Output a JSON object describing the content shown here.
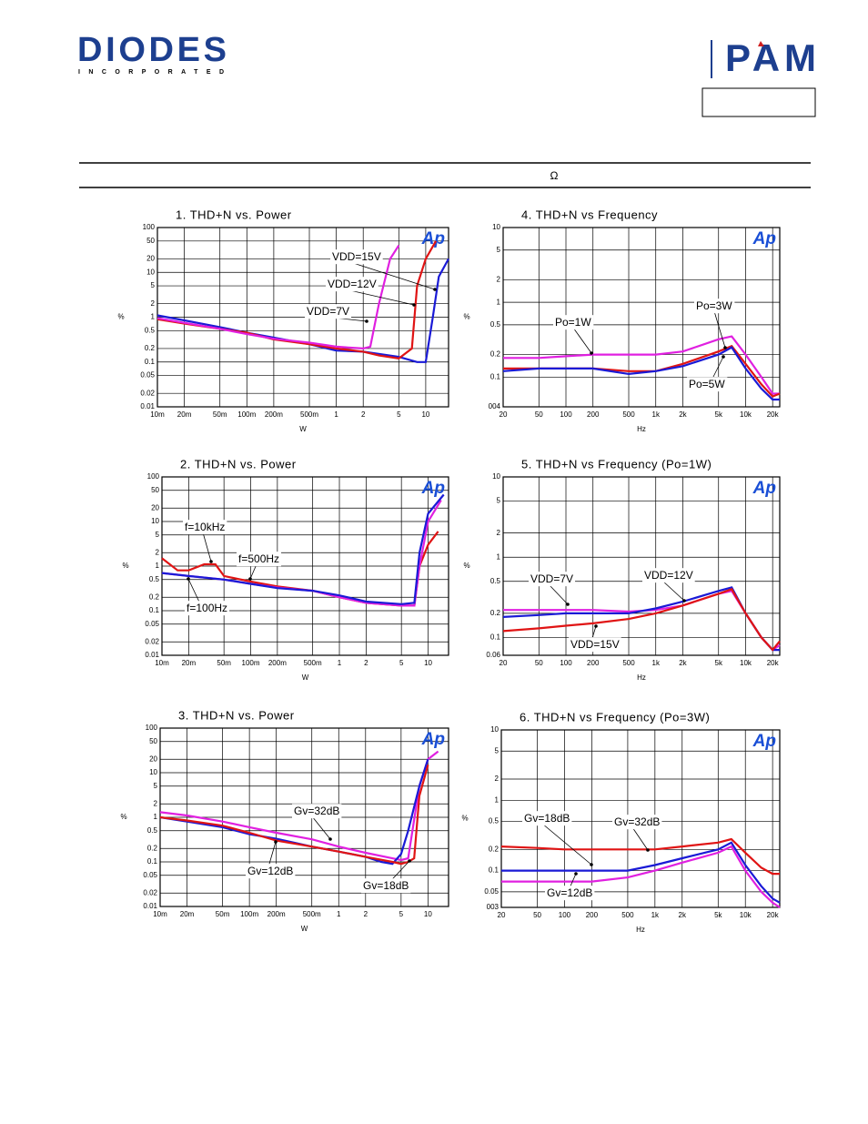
{
  "header": {
    "company": "DIODES",
    "company_sub": "INCORPORATED",
    "brand": "PAM",
    "unit_symbol": "Ω"
  },
  "chart_data": [
    {
      "type": "line",
      "title": "1. THD+N vs. Power",
      "logo": "Ap",
      "x_label": "W",
      "y_label": "%",
      "xscale": "log",
      "yscale": "log",
      "grid": true,
      "xlim": [
        0.01,
        18
      ],
      "ylim": [
        0.01,
        100
      ],
      "xticks": [
        {
          "value": 0.01,
          "label": "10m"
        },
        {
          "value": 0.02,
          "label": "20m"
        },
        {
          "value": 0.05,
          "label": "50m"
        },
        {
          "value": 0.1,
          "label": "100m"
        },
        {
          "value": 0.2,
          "label": "200m"
        },
        {
          "value": 0.5,
          "label": "500m"
        },
        1,
        2,
        5,
        10
      ],
      "yticks": [
        0.01,
        0.02,
        0.05,
        0.1,
        0.2,
        0.5,
        1,
        2,
        5,
        10,
        20,
        50,
        100
      ],
      "series": [
        {
          "name": "VDD=15V",
          "color": "#1a1ad6",
          "x": [
            0.01,
            0.02,
            0.05,
            0.1,
            0.2,
            0.5,
            1,
            2,
            5,
            8,
            10,
            12,
            14,
            18
          ],
          "values": [
            1.1,
            0.85,
            0.6,
            0.45,
            0.35,
            0.25,
            0.18,
            0.17,
            0.13,
            0.1,
            0.1,
            1,
            8,
            20
          ]
        },
        {
          "name": "VDD=12V",
          "color": "#e01414",
          "x": [
            0.01,
            0.02,
            0.05,
            0.1,
            0.2,
            0.5,
            1,
            2,
            3,
            5,
            7,
            8,
            10,
            13
          ],
          "values": [
            0.9,
            0.72,
            0.55,
            0.45,
            0.32,
            0.25,
            0.2,
            0.17,
            0.14,
            0.12,
            0.2,
            5,
            20,
            50
          ]
        },
        {
          "name": "VDD=7V",
          "color": "#e020e0",
          "x": [
            0.01,
            0.02,
            0.05,
            0.1,
            0.2,
            0.5,
            1,
            2,
            2.4,
            3,
            4,
            5
          ],
          "values": [
            0.95,
            0.75,
            0.55,
            0.42,
            0.33,
            0.27,
            0.22,
            0.2,
            0.22,
            2,
            20,
            40
          ]
        }
      ]
    },
    {
      "type": "line",
      "title": "2. THD+N vs. Power",
      "logo": "Ap",
      "x_label": "W",
      "y_label": "%",
      "xscale": "log",
      "yscale": "log",
      "grid": true,
      "xlim": [
        0.01,
        17
      ],
      "ylim": [
        0.01,
        100
      ],
      "xticks": [
        {
          "value": 0.01,
          "label": "10m"
        },
        {
          "value": 0.02,
          "label": "20m"
        },
        {
          "value": 0.05,
          "label": "50m"
        },
        {
          "value": 0.1,
          "label": "100m"
        },
        {
          "value": 0.2,
          "label": "200m"
        },
        {
          "value": 0.5,
          "label": "500m"
        },
        1,
        2,
        5,
        10
      ],
      "yticks": [
        0.01,
        0.02,
        0.05,
        0.1,
        0.2,
        0.5,
        1,
        2,
        5,
        10,
        20,
        50,
        100
      ],
      "series": [
        {
          "name": "f=10kHz",
          "color": "#e01414",
          "x": [
            0.01,
            0.015,
            0.02,
            0.03,
            0.04,
            0.05,
            0.1,
            0.2,
            0.5,
            1,
            2,
            5,
            7,
            8,
            10,
            13
          ],
          "values": [
            1.5,
            0.8,
            0.8,
            1.1,
            1.1,
            0.6,
            0.45,
            0.35,
            0.28,
            0.2,
            0.15,
            0.13,
            0.13,
            1,
            3,
            6
          ]
        },
        {
          "name": "f=500Hz",
          "color": "#e020e0",
          "x": [
            0.01,
            0.02,
            0.05,
            0.1,
            0.2,
            0.5,
            1,
            2,
            5,
            7,
            8,
            10,
            14
          ],
          "values": [
            0.7,
            0.6,
            0.5,
            0.4,
            0.33,
            0.28,
            0.2,
            0.15,
            0.13,
            0.13,
            1,
            10,
            30
          ]
        },
        {
          "name": "f=100Hz",
          "color": "#1a1ad6",
          "x": [
            0.01,
            0.02,
            0.05,
            0.1,
            0.2,
            0.5,
            1,
            2,
            5,
            7,
            8,
            10,
            15
          ],
          "values": [
            0.7,
            0.6,
            0.5,
            0.4,
            0.32,
            0.28,
            0.22,
            0.16,
            0.14,
            0.15,
            2,
            15,
            40
          ]
        }
      ]
    },
    {
      "type": "line",
      "title": "3. THD+N vs. Power",
      "logo": "Ap",
      "x_label": "W",
      "y_label": "%",
      "xscale": "log",
      "yscale": "log",
      "grid": true,
      "xlim": [
        0.01,
        17
      ],
      "ylim": [
        0.01,
        100
      ],
      "xticks": [
        {
          "value": 0.01,
          "label": "10m"
        },
        {
          "value": 0.02,
          "label": "20m"
        },
        {
          "value": 0.05,
          "label": "50m"
        },
        {
          "value": 0.1,
          "label": "100m"
        },
        {
          "value": 0.2,
          "label": "200m"
        },
        {
          "value": 0.5,
          "label": "500m"
        },
        1,
        2,
        5,
        10
      ],
      "yticks": [
        0.01,
        0.02,
        0.05,
        0.1,
        0.2,
        0.5,
        1,
        2,
        5,
        10,
        20,
        50,
        100
      ],
      "series": [
        {
          "name": "Gv=32dB",
          "color": "#e020e0",
          "x": [
            0.01,
            0.02,
            0.05,
            0.1,
            0.2,
            0.5,
            1,
            2,
            4,
            5,
            6,
            8,
            10,
            13
          ],
          "values": [
            1.3,
            1.1,
            0.8,
            0.6,
            0.45,
            0.32,
            0.22,
            0.16,
            0.12,
            0.11,
            0.12,
            5,
            20,
            30
          ]
        },
        {
          "name": "Gv=12dB",
          "color": "#1a1ad6",
          "x": [
            0.01,
            0.02,
            0.05,
            0.1,
            0.2,
            0.5,
            1,
            2,
            3,
            4,
            5,
            6,
            8,
            10
          ],
          "values": [
            1,
            0.8,
            0.6,
            0.42,
            0.33,
            0.22,
            0.17,
            0.13,
            0.1,
            0.09,
            0.15,
            0.5,
            5,
            20
          ]
        },
        {
          "name": "Gv=18dB",
          "color": "#e01414",
          "x": [
            0.01,
            0.02,
            0.05,
            0.1,
            0.2,
            0.5,
            1,
            2,
            4,
            5,
            6,
            7,
            8,
            10
          ],
          "values": [
            1,
            0.85,
            0.65,
            0.45,
            0.3,
            0.22,
            0.17,
            0.13,
            0.1,
            0.09,
            0.1,
            0.12,
            3,
            15
          ]
        }
      ]
    },
    {
      "type": "line",
      "title": "4. THD+N vs Frequency",
      "logo": "Ap",
      "x_label": "Hz",
      "y_label": "%",
      "xscale": "log",
      "yscale": "log",
      "grid": true,
      "xlim": [
        20,
        24000
      ],
      "ylim": [
        0.04,
        10
      ],
      "xticks": [
        20,
        50,
        100,
        200,
        500,
        {
          "value": 1000,
          "label": "1k"
        },
        {
          "value": 2000,
          "label": "2k"
        },
        {
          "value": 5000,
          "label": "5k"
        },
        {
          "value": 10000,
          "label": "10k"
        },
        {
          "value": 20000,
          "label": "20k"
        }
      ],
      "yticks": [
        {
          "value": 0.04,
          "label": "004"
        },
        0.1,
        0.2,
        0.5,
        1,
        2,
        5,
        10
      ],
      "x": [
        20,
        50,
        100,
        200,
        500,
        1000,
        2000,
        5000,
        7000,
        10000,
        15000,
        20000,
        24000
      ],
      "series": [
        {
          "name": "Po=1W",
          "color": "#e020e0",
          "values": [
            0.18,
            0.18,
            0.19,
            0.2,
            0.2,
            0.2,
            0.22,
            0.32,
            0.35,
            0.2,
            0.1,
            0.06,
            0.06
          ]
        },
        {
          "name": "Po=3W",
          "color": "#e01414",
          "values": [
            0.13,
            0.13,
            0.13,
            0.13,
            0.12,
            0.12,
            0.15,
            0.22,
            0.26,
            0.15,
            0.08,
            0.055,
            0.06
          ]
        },
        {
          "name": "Po=5W",
          "color": "#1a1ad6",
          "values": [
            0.12,
            0.13,
            0.13,
            0.13,
            0.11,
            0.12,
            0.14,
            0.2,
            0.25,
            0.13,
            0.07,
            0.05,
            0.05
          ]
        }
      ]
    },
    {
      "type": "line",
      "title": "5. THD+N vs Frequency (Po=1W)",
      "logo": "Ap",
      "x_label": "Hz",
      "y_label": "%",
      "xscale": "log",
      "yscale": "log",
      "grid": true,
      "xlim": [
        20,
        24000
      ],
      "ylim": [
        0.06,
        10
      ],
      "xticks": [
        20,
        50,
        100,
        200,
        500,
        {
          "value": 1000,
          "label": "1k"
        },
        {
          "value": 2000,
          "label": "2k"
        },
        {
          "value": 5000,
          "label": "5k"
        },
        {
          "value": 10000,
          "label": "10k"
        },
        {
          "value": 20000,
          "label": "20k"
        }
      ],
      "yticks": [
        0.06,
        0.1,
        0.2,
        0.5,
        1,
        2,
        5,
        10
      ],
      "x": [
        20,
        50,
        100,
        200,
        500,
        1000,
        2000,
        5000,
        7000,
        10000,
        15000,
        20000,
        24000
      ],
      "series": [
        {
          "name": "VDD=7V",
          "color": "#e020e0",
          "values": [
            0.22,
            0.22,
            0.22,
            0.22,
            0.21,
            0.22,
            0.25,
            0.35,
            0.38,
            0.2,
            0.1,
            0.07,
            0.08
          ]
        },
        {
          "name": "VDD=12V",
          "color": "#1a1ad6",
          "values": [
            0.18,
            0.19,
            0.2,
            0.2,
            0.2,
            0.23,
            0.28,
            0.38,
            0.42,
            0.2,
            0.1,
            0.07,
            0.07
          ]
        },
        {
          "name": "VDD=15V",
          "color": "#e01414",
          "values": [
            0.12,
            0.13,
            0.14,
            0.15,
            0.17,
            0.2,
            0.25,
            0.35,
            0.4,
            0.2,
            0.1,
            0.07,
            0.09
          ]
        }
      ]
    },
    {
      "type": "line",
      "title": "6. THD+N vs Frequency (Po=3W)",
      "logo": "Ap",
      "x_label": "Hz",
      "y_label": "%",
      "xscale": "log",
      "yscale": "log",
      "grid": true,
      "xlim": [
        20,
        24000
      ],
      "ylim": [
        0.03,
        10
      ],
      "xticks": [
        20,
        50,
        100,
        200,
        500,
        {
          "value": 1000,
          "label": "1k"
        },
        {
          "value": 2000,
          "label": "2k"
        },
        {
          "value": 5000,
          "label": "5k"
        },
        {
          "value": 10000,
          "label": "10k"
        },
        {
          "value": 20000,
          "label": "20k"
        }
      ],
      "yticks": [
        {
          "value": 0.03,
          "label": "003"
        },
        0.05,
        0.1,
        0.2,
        0.5,
        1,
        2,
        5,
        10
      ],
      "x": [
        20,
        50,
        100,
        200,
        500,
        1000,
        2000,
        5000,
        7000,
        10000,
        15000,
        20000,
        24000
      ],
      "series": [
        {
          "name": "Gv=18dB",
          "color": "#1a1ad6",
          "values": [
            0.1,
            0.1,
            0.1,
            0.1,
            0.1,
            0.12,
            0.15,
            0.2,
            0.25,
            0.12,
            0.06,
            0.04,
            0.035
          ]
        },
        {
          "name": "Gv=32dB",
          "color": "#e01414",
          "values": [
            0.22,
            0.21,
            0.2,
            0.2,
            0.2,
            0.2,
            0.22,
            0.25,
            0.28,
            0.18,
            0.11,
            0.09,
            0.09
          ]
        },
        {
          "name": "Gv=12dB",
          "color": "#e020e0",
          "values": [
            0.07,
            0.07,
            0.07,
            0.07,
            0.08,
            0.1,
            0.13,
            0.18,
            0.22,
            0.1,
            0.05,
            0.035,
            0.03
          ]
        }
      ]
    }
  ]
}
